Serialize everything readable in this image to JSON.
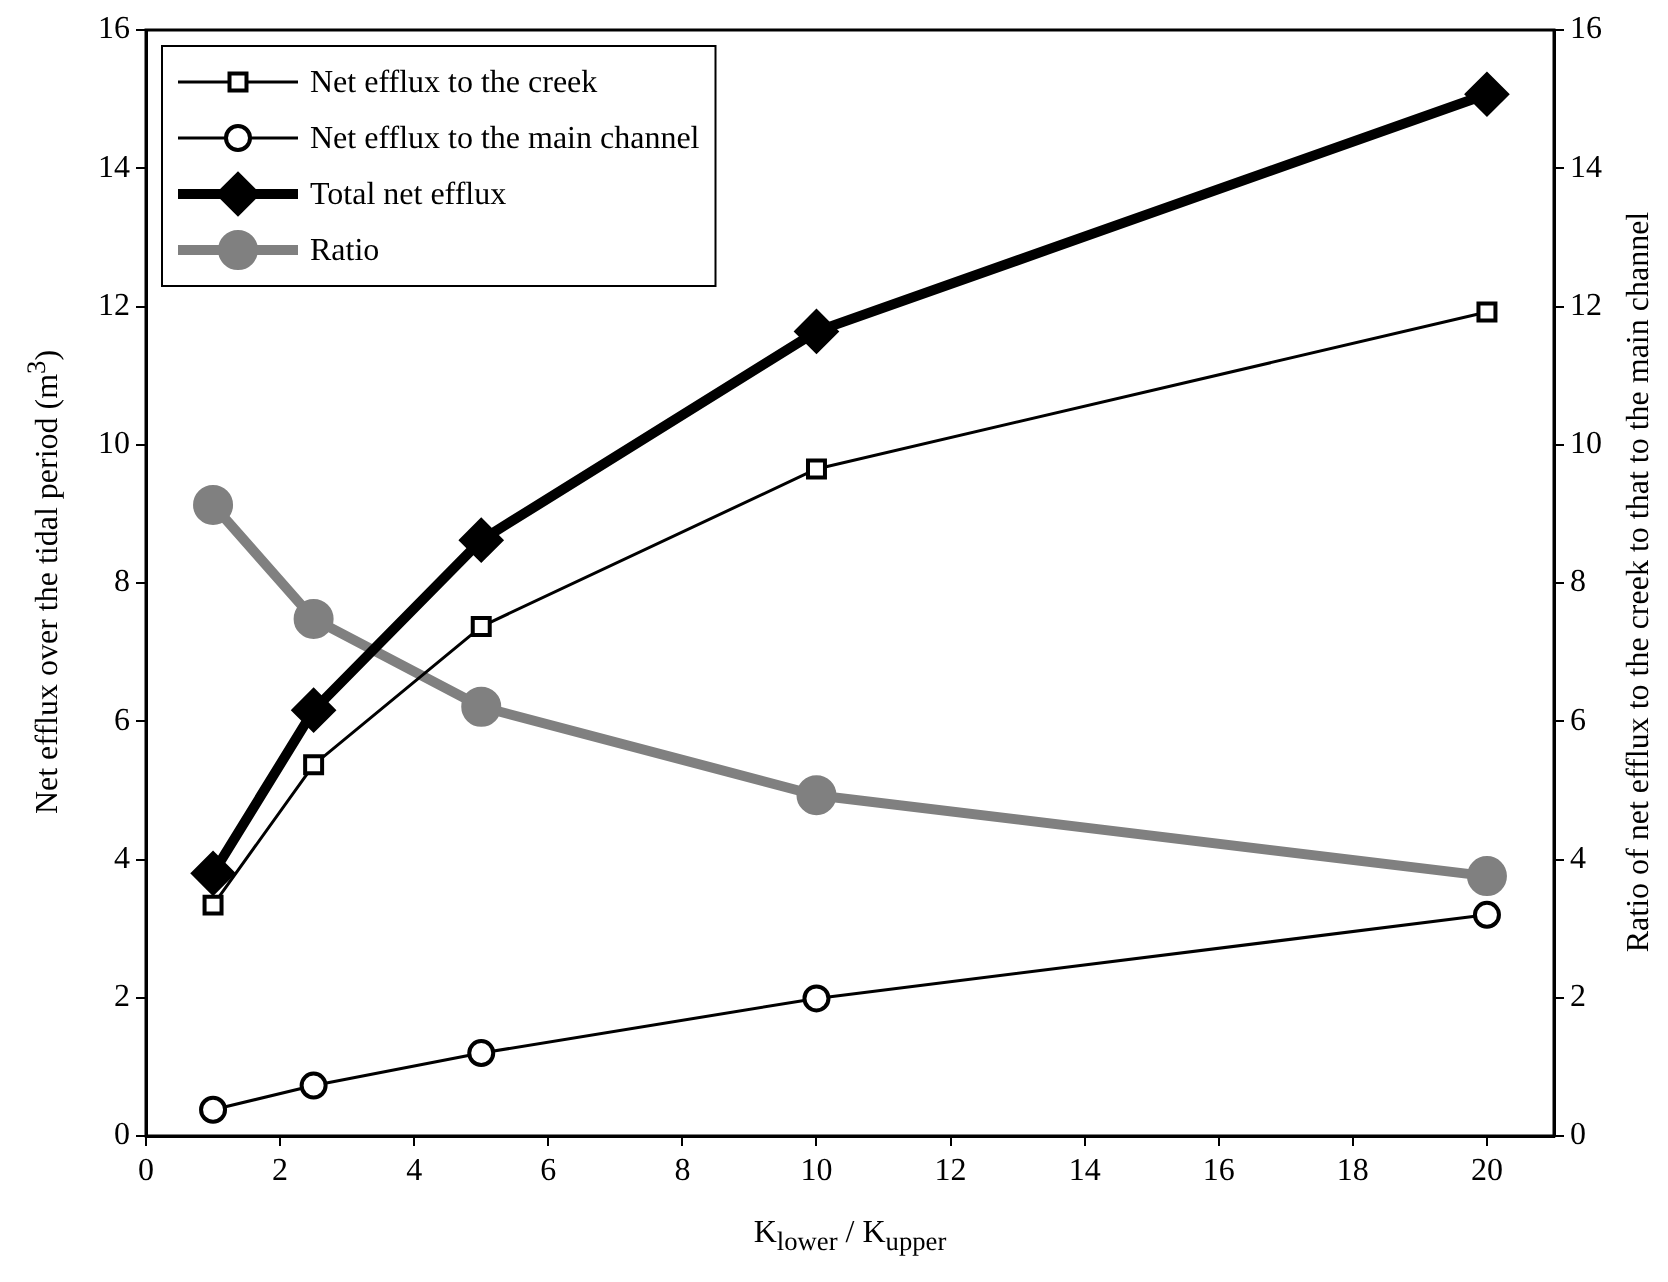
{
  "chart_data": {
    "type": "line",
    "xlabel": "K$_{lower}$ / K$_{upper}$",
    "ylabel": "Net efflux over the tidal period (m$^{3}$)",
    "y2label": "Ratio of net efflux to the creek to that to the main channel",
    "x": [
      1,
      2.5,
      5,
      10,
      20
    ],
    "xlim": [
      0,
      21
    ],
    "xticks": [
      0,
      2,
      4,
      6,
      8,
      10,
      12,
      14,
      16,
      18,
      20
    ],
    "ylim": [
      0,
      16
    ],
    "yticks": [
      0,
      2,
      4,
      6,
      8,
      10,
      12,
      14,
      16
    ],
    "y2lim": [
      0,
      16
    ],
    "y2ticks": [
      0,
      2,
      4,
      6,
      8,
      10,
      12,
      14,
      16
    ],
    "grid": false,
    "legend": "top left",
    "line_style": "solid",
    "series": [
      {
        "name": "Net efflux to the creek",
        "color": "#000000",
        "marker": "square",
        "values": [
          3.34,
          5.37,
          7.37,
          9.65,
          11.92
        ]
      },
      {
        "name": "Net efflux to the main channel",
        "color": "#000000",
        "marker": "circle",
        "values": [
          0.38,
          0.73,
          1.2,
          1.99,
          3.2
        ]
      },
      {
        "name": "Total net efflux",
        "color": "#000000",
        "marker": "diamond",
        "values": [
          3.8,
          6.16,
          8.62,
          11.64,
          15.07
        ]
      },
      {
        "name": "Ratio",
        "color": "#808080",
        "marker": "circle",
        "axis": "y2",
        "values": [
          9.13,
          7.48,
          6.21,
          4.93,
          3.76
        ]
      }
    ]
  }
}
